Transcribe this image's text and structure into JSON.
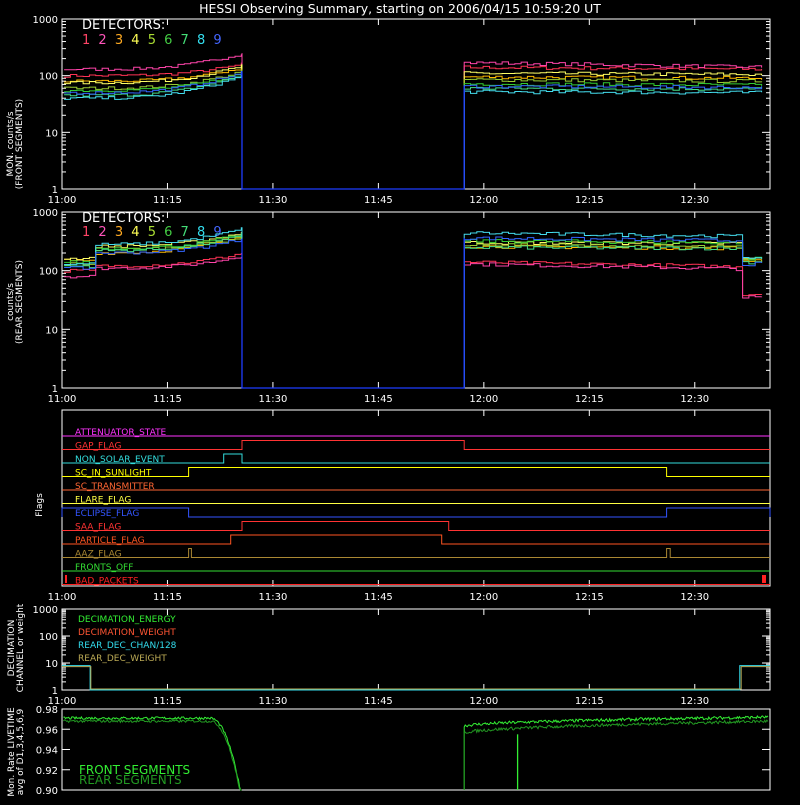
{
  "title": "HESSI Observing Summary, starting on 2006/04/15 10:59:20 UT",
  "colors": {
    "background": "#000000",
    "axes": "#ffffff",
    "det": [
      "#ff3355",
      "#ff44aa",
      "#ffbb00",
      "#ffff66",
      "#99cc33",
      "#33cc33",
      "#44dd88",
      "#44ddee",
      "#3366ff"
    ],
    "det_label": [
      "#ff4466",
      "#ff55bb",
      "#ffaa22",
      "#ffff55",
      "#aadd33",
      "#44cc44",
      "#44dd77",
      "#33ddee",
      "#4466ff"
    ],
    "line": "#1e3cff"
  },
  "panels": {
    "front": {
      "ylabel_line1": "MON. counts/s",
      "ylabel_line2": "(FRONT SEGMENTS)",
      "legend_title": "DETECTORS:",
      "legend_digits": [
        "1",
        "2",
        "3",
        "4",
        "5",
        "6",
        "7",
        "8",
        "9"
      ]
    },
    "rear": {
      "ylabel_line1": "counts/s",
      "ylabel_line2": "(REAR SEGMENTS)",
      "legend_title": "DETECTORS:",
      "legend_digits": [
        "1",
        "2",
        "3",
        "4",
        "5",
        "6",
        "7",
        "8",
        "9"
      ]
    },
    "flags": {
      "ylabel": "Flags"
    },
    "decimation": {
      "ylabel_line1": "DECIMATION",
      "ylabel_line2": "CHANNEL or weight"
    },
    "livetime": {
      "ylabel_line1": "Mon. Rate LIVETIME",
      "ylabel_line2": "avg of D1,3,4,5,6,9"
    }
  },
  "chart_data": [
    {
      "type": "line",
      "name": "front",
      "yscale": "log",
      "ylim": [
        1,
        1000
      ],
      "yticks": [
        "1",
        "10",
        "100",
        "1000"
      ],
      "xticks": [
        "11:00",
        "11:15",
        "11:30",
        "11:45",
        "12:00",
        "12:15",
        "12:30"
      ],
      "xlim_min": [
        0,
        100.7
      ],
      "gap_min": [
        25.6,
        57.2
      ],
      "series": [
        {
          "name": "1",
          "pre": [
            100,
            160
          ],
          "post": [
            140,
            130
          ]
        },
        {
          "name": "2",
          "pre": [
            130,
            250
          ],
          "post": [
            170,
            140
          ]
        },
        {
          "name": "3",
          "pre": [
            80,
            140
          ],
          "post": [
            95,
            90
          ]
        },
        {
          "name": "4",
          "pre": [
            75,
            150
          ],
          "post": [
            110,
            105
          ]
        },
        {
          "name": "5",
          "pre": [
            60,
            120
          ],
          "post": [
            85,
            80
          ]
        },
        {
          "name": "6",
          "pre": [
            55,
            110
          ],
          "post": [
            72,
            68
          ]
        },
        {
          "name": "7",
          "pre": [
            45,
            105
          ],
          "post": [
            60,
            58
          ]
        },
        {
          "name": "8",
          "pre": [
            40,
            100
          ],
          "post": [
            52,
            50
          ]
        },
        {
          "name": "9",
          "pre": [
            50,
            115
          ],
          "post": [
            65,
            62
          ]
        }
      ]
    },
    {
      "type": "line",
      "name": "rear",
      "yscale": "log",
      "ylim": [
        1,
        1000
      ],
      "yticks": [
        "1",
        "10",
        "100",
        "1000"
      ],
      "xticks": [
        "11:00",
        "11:15",
        "11:30",
        "11:45",
        "12:00",
        "12:15",
        "12:30"
      ],
      "xlim_min": [
        0,
        100.7
      ],
      "gap_min": [
        25.6,
        57.2
      ],
      "series": [
        {
          "name": "1",
          "early": 100,
          "pre": [
            120,
            200
          ],
          "post": [
            140,
            115
          ],
          "late": 40
        },
        {
          "name": "2",
          "early": 80,
          "pre": [
            110,
            180
          ],
          "post": [
            130,
            105
          ],
          "late": 35
        },
        {
          "name": "3",
          "early": 150,
          "pre": [
            200,
            400
          ],
          "post": [
            260,
            240
          ],
          "late": 150
        },
        {
          "name": "4",
          "early": 160,
          "pre": [
            260,
            450
          ],
          "post": [
            300,
            290
          ],
          "late": 160
        },
        {
          "name": "5",
          "early": 130,
          "pre": [
            230,
            380
          ],
          "post": [
            280,
            250
          ],
          "late": 150
        },
        {
          "name": "6",
          "early": 140,
          "pre": [
            240,
            420
          ],
          "post": [
            320,
            300
          ],
          "late": 160
        },
        {
          "name": "7",
          "early": 120,
          "pre": [
            220,
            400
          ],
          "post": [
            250,
            240
          ],
          "late": 140
        },
        {
          "name": "8",
          "early": 130,
          "pre": [
            280,
            520
          ],
          "post": [
            440,
            380
          ],
          "late": 170
        },
        {
          "name": "9",
          "early": 110,
          "pre": [
            200,
            350
          ],
          "post": [
            360,
            320
          ],
          "late": 130
        }
      ]
    },
    {
      "type": "line",
      "name": "flags",
      "xticks": [
        "11:00",
        "11:15",
        "11:30",
        "11:45",
        "12:00",
        "12:15",
        "12:30"
      ],
      "flags": [
        {
          "label": "ATTENUATOR_STATE",
          "color": "#ff33ff",
          "high": []
        },
        {
          "label": "GAP_FLAG",
          "color": "#ff3333",
          "high": [
            [
              25.6,
              57.2
            ]
          ]
        },
        {
          "label": "NON_SOLAR_EVENT",
          "color": "#33dddd",
          "high": [
            [
              23.0,
              25.6
            ]
          ]
        },
        {
          "label": "SC_IN_SUNLIGHT",
          "color": "#ffff00",
          "high": [
            [
              18.0,
              86.0
            ]
          ]
        },
        {
          "label": "SC_TRANSMITTER",
          "color": "#ff6633",
          "high": []
        },
        {
          "label": "FLARE_FLAG",
          "color": "#ffff44",
          "high": []
        },
        {
          "label": "ECLIPSE_FLAG",
          "color": "#3355ff",
          "high": [
            [
              0,
              18.0
            ],
            [
              86.0,
              100.7
            ]
          ]
        },
        {
          "label": "SAA_FLAG",
          "color": "#ff3333",
          "high": [
            [
              25.6,
              55.0
            ]
          ]
        },
        {
          "label": "PARTICLE_FLAG",
          "color": "#ff5522",
          "high": [
            [
              24.0,
              54.0
            ]
          ]
        },
        {
          "label": "AAZ_FLAG",
          "color": "#aa8833",
          "high": [
            [
              18.0,
              18.4
            ],
            [
              86.0,
              86.5
            ]
          ]
        },
        {
          "label": "FRONTS_OFF",
          "color": "#33dd33",
          "high": []
        },
        {
          "label": "BAD_PACKETS",
          "color": "#ff2222",
          "high": []
        }
      ]
    },
    {
      "type": "line",
      "name": "decimation",
      "yscale": "log",
      "ylim": [
        1,
        1000
      ],
      "yticks": [
        "1",
        "10",
        "100",
        "1000"
      ],
      "xticks": [
        "11:00",
        "11:15",
        "11:30",
        "11:45",
        "12:00",
        "12:15",
        "12:30"
      ],
      "series": [
        {
          "name": "DECIMATION_ENERGY",
          "color": "#33ee33"
        },
        {
          "name": "DECIMATION_WEIGHT",
          "color": "#ff5533"
        },
        {
          "name": "REAR_DEC_CHAN/128",
          "color": "#33ddee"
        },
        {
          "name": "REAR_DEC_WEIGHT",
          "color": "#bbaa55"
        }
      ]
    },
    {
      "type": "line",
      "name": "livetime",
      "ylim": [
        0.9,
        0.98
      ],
      "yticks": [
        "0.90",
        "0.92",
        "0.94",
        "0.96",
        "0.98"
      ],
      "series": [
        {
          "name": "FRONT SEGMENTS",
          "color": "#33ee33",
          "pre_level": 0.971,
          "post_start": 0.963,
          "post_end": 0.972
        },
        {
          "name": "REAR SEGMENTS",
          "color": "#229922",
          "pre_level": 0.968,
          "post_start": 0.956,
          "post_end": 0.968
        }
      ]
    }
  ]
}
